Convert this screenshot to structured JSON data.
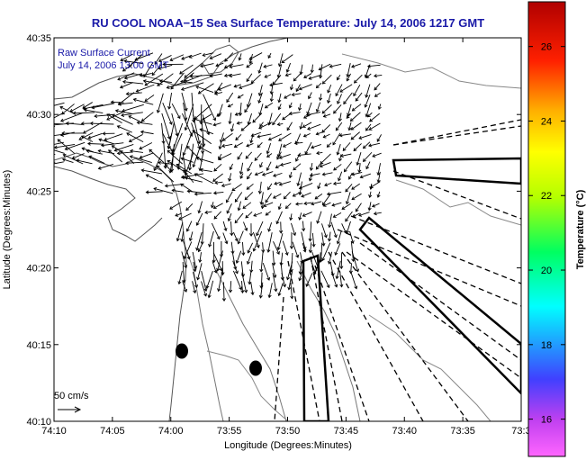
{
  "chart_data": {
    "type": "map",
    "title": "RU COOL  NOAA−15  Sea Surface Temperature:  July 14, 2006 1217 GMT",
    "inset_lines": [
      "Raw Surface Current",
      "July 14, 2006 13:00 GMT"
    ],
    "xlabel": "Longitude (Degrees:Minutes)",
    "ylabel": "Latitude (Degrees:Minutes)",
    "x_ticks": [
      "74:10",
      "74:05",
      "74:00",
      "73:55",
      "73:50",
      "73:45",
      "73:40",
      "73:35",
      "73:3"
    ],
    "y_ticks": [
      "40:10",
      "40:15",
      "40:20",
      "40:25",
      "40:30",
      "40:35"
    ],
    "xlim_minutes_west": [
      10,
      30
    ],
    "ylim_minutes_north": [
      10,
      35
    ],
    "scale_label": "50 cm/s",
    "colorbar": {
      "label": "Temperature (°C)",
      "ticks": [
        16,
        18,
        20,
        22,
        24,
        26
      ],
      "range": [
        15,
        27.2
      ]
    },
    "markers": [
      {
        "lon_min_w": 58.8,
        "lat_min_n": 14.6
      },
      {
        "lon_min_w": 52.4,
        "lat_min_n": 13.5
      }
    ]
  }
}
